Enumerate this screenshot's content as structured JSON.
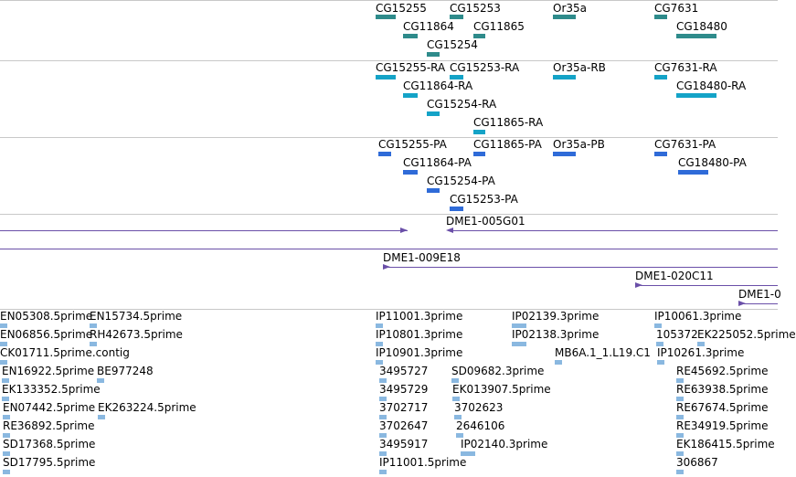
{
  "colors": {
    "gene": "#2e8b8b",
    "rna": "#14a3c7",
    "protein": "#2f6bd8",
    "clone": "#6a4fa8",
    "est": "#8ab8e0",
    "divider": "#c8c8c8"
  },
  "tracks": {
    "genes": [
      {
        "label": "CG15255",
        "strand": "plus"
      },
      {
        "label": "CG15253",
        "strand": "minus"
      },
      {
        "label": "Or35a",
        "strand": "minus"
      },
      {
        "label": "CG7631",
        "strand": "plus"
      },
      {
        "label": "CG11864",
        "strand": "minus"
      },
      {
        "label": "CG11865",
        "strand": "plus"
      },
      {
        "label": "CG18480",
        "strand": "plus"
      },
      {
        "label": "CG15254",
        "strand": "minus"
      }
    ],
    "transcripts": [
      {
        "label": "CG15255-RA"
      },
      {
        "label": "CG15253-RA"
      },
      {
        "label": "Or35a-RB"
      },
      {
        "label": "CG7631-RA"
      },
      {
        "label": "CG11864-RA"
      },
      {
        "label": "CG18480-RA"
      },
      {
        "label": "CG15254-RA"
      },
      {
        "label": "CG11865-RA"
      }
    ],
    "proteins": [
      {
        "label": "CG15255-PA"
      },
      {
        "label": "CG11865-PA"
      },
      {
        "label": "Or35a-PB"
      },
      {
        "label": "CG7631-PA"
      },
      {
        "label": "CG11864-PA"
      },
      {
        "label": "CG18480-PA"
      },
      {
        "label": "CG15254-PA"
      },
      {
        "label": "CG15253-PA"
      }
    ],
    "clones": [
      {
        "label": "DME1-005G01"
      },
      {
        "label": "DME1-009E18"
      },
      {
        "label": "DME1-020C11"
      },
      {
        "label": "DME1-0"
      }
    ],
    "ests": [
      {
        "label": "EN05308.5prime"
      },
      {
        "label": "EN15734.5prime"
      },
      {
        "label": "IP11001.3prime"
      },
      {
        "label": "IP02139.3prime"
      },
      {
        "label": "IP10061.3prime"
      },
      {
        "label": "EN06856.5prime"
      },
      {
        "label": "RH42673.5prime"
      },
      {
        "label": "IP10801.3prime"
      },
      {
        "label": "IP02138.3prime"
      },
      {
        "label": "105372"
      },
      {
        "label": "EK225052.5prime"
      },
      {
        "label": "CK01711.5prime.contig"
      },
      {
        "label": "IP10901.3prime"
      },
      {
        "label": "MB6A.1_1.L19.C1"
      },
      {
        "label": "IP10261.3prime"
      },
      {
        "label": "EN16922.5prime"
      },
      {
        "label": "BE977248"
      },
      {
        "label": "3495727"
      },
      {
        "label": "SD09682.3prime"
      },
      {
        "label": "RE45692.5prime"
      },
      {
        "label": "EK133352.5prime"
      },
      {
        "label": "3495729"
      },
      {
        "label": "EK013907.5prime"
      },
      {
        "label": "RE63938.5prime"
      },
      {
        "label": "EN07442.5prime"
      },
      {
        "label": "EK263224.5prime"
      },
      {
        "label": "3702717"
      },
      {
        "label": "3702623"
      },
      {
        "label": "RE67674.5prime"
      },
      {
        "label": "RE36892.5prime"
      },
      {
        "label": "3702647"
      },
      {
        "label": "2646106"
      },
      {
        "label": "RE34919.5prime"
      },
      {
        "label": "SD17368.5prime"
      },
      {
        "label": "3495917"
      },
      {
        "label": "IP02140.3prime"
      },
      {
        "label": "EK186415.5prime"
      },
      {
        "label": "SD17795.5prime"
      },
      {
        "label": "IP11001.5prime"
      },
      {
        "label": "306867"
      }
    ]
  }
}
